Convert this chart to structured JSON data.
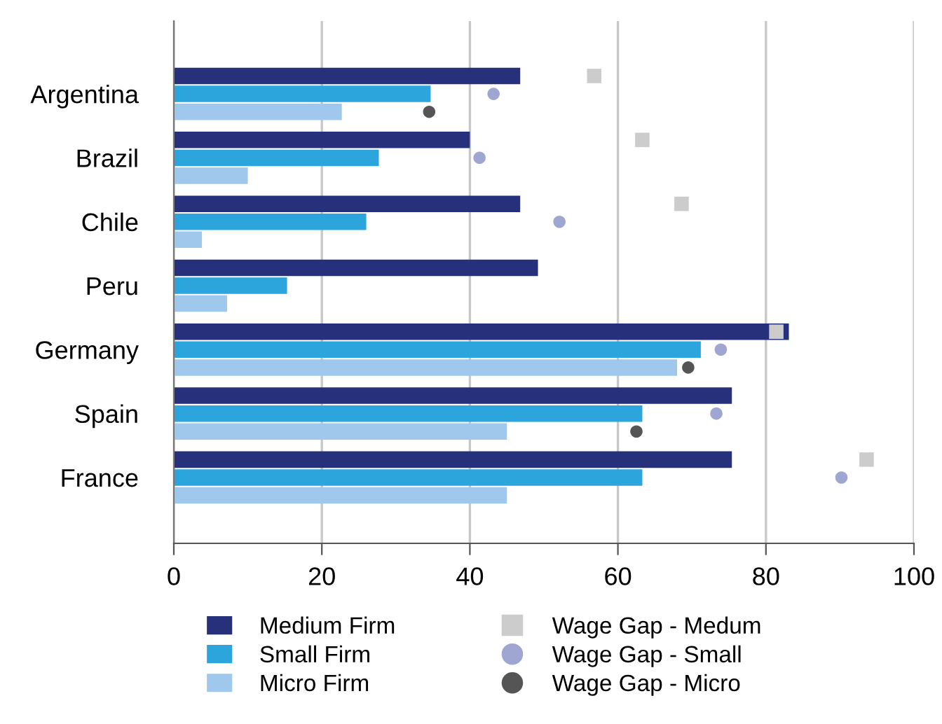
{
  "chart_data": {
    "type": "bar",
    "orientation": "horizontal",
    "categories": [
      "Argentina",
      "Brazil",
      "Chile",
      "Peru",
      "Germany",
      "Spain",
      "France"
    ],
    "xlim": [
      0,
      100
    ],
    "xticks": [
      0,
      20,
      40,
      60,
      80,
      100
    ],
    "grid": "x",
    "legend": "bottom",
    "series": [
      {
        "name": "Medium Firm",
        "color": "#27307a",
        "values": [
          46.8,
          40,
          46.8,
          49.2,
          83.1,
          75.4,
          75.4
        ]
      },
      {
        "name": "Small Firm",
        "color": "#2ca4dc",
        "values": [
          34.7,
          27.7,
          26,
          15.3,
          71.2,
          63.3,
          63.3
        ]
      },
      {
        "name": "Micro Firm",
        "color": "#9fc8ec",
        "values": [
          22.7,
          10,
          3.8,
          7.2,
          68,
          45,
          45
        ]
      },
      {
        "name": "Wage Gap - Medum",
        "type": "scatter",
        "marker": "square",
        "color": "#cccccc",
        "values": [
          56.8,
          63.3,
          68.6,
          null,
          81.4,
          null,
          93.6
        ]
      },
      {
        "name": "Wage Gap - Small",
        "type": "scatter",
        "marker": "circle",
        "color": "#9fa6d2",
        "values": [
          43.2,
          41.3,
          52.1,
          null,
          73.9,
          73.3,
          90.2
        ]
      },
      {
        "name": "Wage Gap - Micro",
        "type": "scatter",
        "marker": "circle",
        "color": "#555555",
        "values": [
          34.5,
          null,
          null,
          null,
          69.5,
          62.5,
          null
        ]
      }
    ]
  }
}
